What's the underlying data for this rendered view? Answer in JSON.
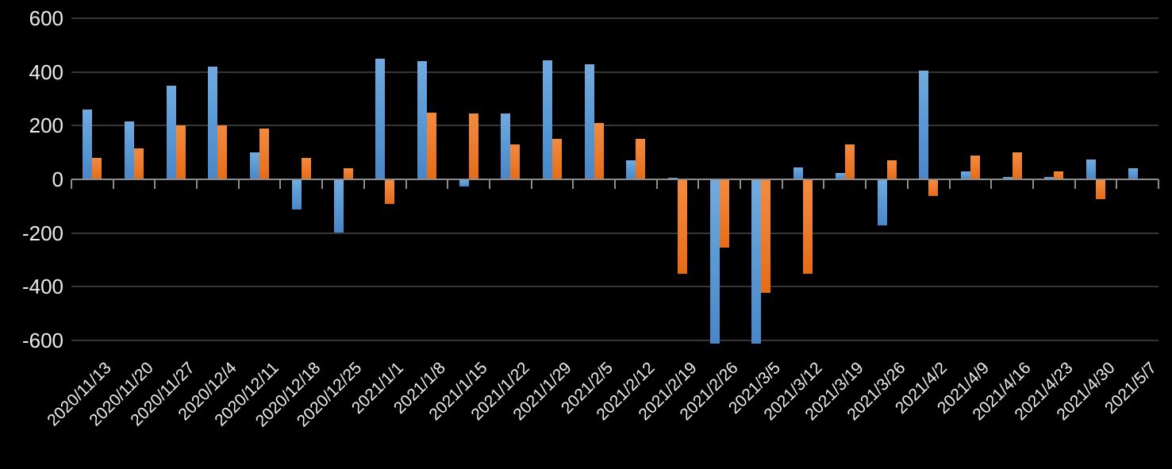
{
  "chart_data": {
    "type": "bar",
    "title": "",
    "categories": [
      "2020/11/13",
      "2020/11/20",
      "2020/11/27",
      "2020/12/4",
      "2020/12/11",
      "2020/12/18",
      "2020/12/25",
      "2021/1/1",
      "2021/1/8",
      "2021/1/15",
      "2021/1/22",
      "2021/1/29",
      "2021/2/5",
      "2021/2/12",
      "2021/2/19",
      "2021/2/26",
      "2021/3/5",
      "2021/3/12",
      "2021/3/19",
      "2021/3/26",
      "2021/4/2",
      "2021/4/9",
      "2021/4/16",
      "2021/4/23",
      "2021/4/30",
      "2021/5/7"
    ],
    "series": [
      {
        "name": "blue",
        "color": "#5B9BD5",
        "values": [
          260,
          215,
          350,
          420,
          100,
          -110,
          -195,
          450,
          440,
          -25,
          245,
          445,
          430,
          70,
          5,
          -610,
          -610,
          45,
          25,
          -170,
          405,
          30,
          10,
          10,
          75,
          40
        ]
      },
      {
        "name": "orange",
        "color": "#ED7D31",
        "values": [
          80,
          115,
          200,
          200,
          190,
          80,
          40,
          -90,
          250,
          245,
          130,
          150,
          210,
          150,
          -350,
          -250,
          -420,
          -350,
          130,
          70,
          -60,
          90,
          100,
          30,
          -70,
          0
        ]
      }
    ],
    "xlabel": "",
    "ylabel": "",
    "ylim": [
      -600,
      600
    ],
    "yticks": [
      600,
      400,
      200,
      0,
      -200,
      -400,
      -600
    ],
    "grid": true,
    "legend": "none",
    "background_color": "#000000",
    "gridline_color": "#363636",
    "axis_color": "#8c8c8c",
    "label_color": "#ececec"
  }
}
